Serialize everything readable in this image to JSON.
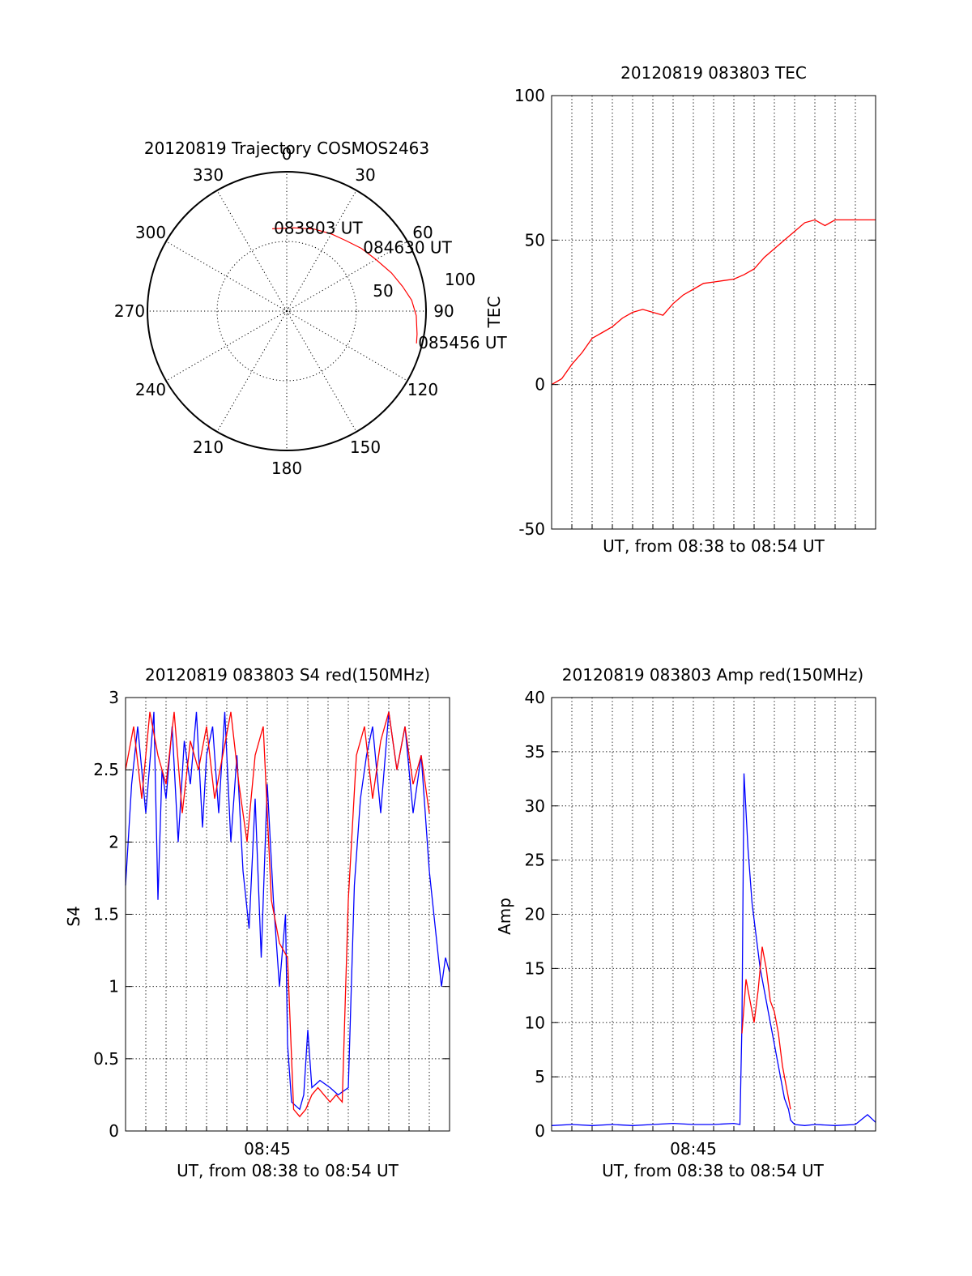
{
  "colors": {
    "red": "#ff0000",
    "blue": "#0000ff",
    "axis": "#000000"
  },
  "chart_data": [
    {
      "type": "polar",
      "title": "20120819 Trajectory COSMOS2463",
      "azimuth_labels": [
        "0",
        "30",
        "60",
        "90",
        "120",
        "150",
        "180",
        "210",
        "240",
        "270",
        "300",
        "330"
      ],
      "radial_labels": [
        "50",
        "100"
      ],
      "elevation_max": 100,
      "trajectory": {
        "color": "red",
        "points": [
          {
            "az": 350,
            "r": 60
          },
          {
            "az": 5,
            "r": 60
          },
          {
            "az": 18,
            "r": 62
          },
          {
            "az": 30,
            "r": 64
          },
          {
            "az": 40,
            "r": 66
          },
          {
            "az": 50,
            "r": 70
          },
          {
            "az": 60,
            "r": 74
          },
          {
            "az": 70,
            "r": 80
          },
          {
            "az": 78,
            "r": 85
          },
          {
            "az": 85,
            "r": 90
          },
          {
            "az": 92,
            "r": 93
          },
          {
            "az": 100,
            "r": 95
          },
          {
            "az": 104,
            "r": 96
          }
        ],
        "labels": [
          {
            "text": "083803 UT",
            "az": 350,
            "r": 60
          },
          {
            "text": "084630 UT",
            "az": 50,
            "r": 70
          },
          {
            "text": "085456 UT",
            "az": 104,
            "r": 96
          }
        ]
      }
    },
    {
      "type": "line",
      "title": "20120819 083803 TEC",
      "xlabel": "UT, from 08:38 to 08:54 UT",
      "ylabel": "TEC",
      "ylim": [
        -50,
        100
      ],
      "yticks": [
        "-50",
        "0",
        "50",
        "100"
      ],
      "grid": true,
      "series": [
        {
          "color": "red",
          "x": [
            0,
            0.5,
            1,
            1.5,
            2,
            2.5,
            3,
            3.5,
            4,
            4.5,
            5,
            5.5,
            6,
            6.5,
            7,
            7.5,
            8,
            8.5,
            9,
            9.5,
            10,
            10.5,
            11,
            11.5,
            12,
            12.5,
            13,
            13.5,
            14,
            14.5,
            15,
            15.5,
            16
          ],
          "y": [
            0,
            2,
            7,
            11,
            16,
            18,
            20,
            23,
            25,
            26,
            25,
            24,
            28,
            31,
            33,
            35,
            35.5,
            36,
            36.5,
            38,
            40,
            44,
            47,
            50,
            53,
            56,
            57,
            55,
            57,
            57,
            57,
            57,
            57
          ]
        }
      ]
    },
    {
      "type": "line",
      "title": "20120819 083803 S4 red(150MHz)",
      "xlabel": "UT, from 08:38 to 08:54 UT",
      "ylabel": "S4",
      "xtick_label": "08:45",
      "ylim": [
        0,
        3
      ],
      "yticks": [
        "0",
        "0.5",
        "1",
        "1.5",
        "2",
        "2.5",
        "3"
      ],
      "grid": true,
      "series": [
        {
          "color": "blue",
          "x": [
            0,
            0.3,
            0.6,
            1.0,
            1.4,
            1.6,
            1.8,
            2.0,
            2.3,
            2.6,
            2.9,
            3.2,
            3.5,
            3.8,
            4.0,
            4.3,
            4.6,
            4.9,
            5.2,
            5.5,
            5.8,
            6.1,
            6.4,
            6.7,
            7.0,
            7.3,
            7.6,
            7.9,
            8.0,
            8.2,
            8.6,
            8.8,
            9.0,
            9.2,
            9.6,
            10.1,
            10.5,
            11.0,
            11.3,
            11.6,
            11.9,
            12.2,
            12.6,
            13.0,
            13.4,
            13.8,
            14.2,
            14.6,
            15.0,
            15.3,
            15.6,
            15.8,
            16.0
          ],
          "y": [
            1.7,
            2.4,
            2.8,
            2.2,
            2.9,
            1.6,
            2.5,
            2.3,
            2.8,
            2.0,
            2.7,
            2.4,
            2.9,
            2.1,
            2.6,
            2.8,
            2.2,
            2.9,
            2.0,
            2.6,
            1.8,
            1.4,
            2.3,
            1.2,
            2.4,
            1.6,
            1.0,
            1.5,
            0.6,
            0.2,
            0.15,
            0.25,
            0.7,
            0.3,
            0.35,
            0.3,
            0.25,
            0.3,
            1.7,
            2.3,
            2.6,
            2.8,
            2.2,
            2.9,
            2.5,
            2.8,
            2.2,
            2.6,
            1.8,
            1.4,
            1.0,
            1.2,
            1.1
          ]
        },
        {
          "color": "red",
          "x": [
            0,
            0.4,
            0.8,
            1.2,
            1.6,
            2.0,
            2.4,
            2.8,
            3.2,
            3.6,
            4.0,
            4.4,
            4.8,
            5.2,
            5.6,
            6.0,
            6.4,
            6.8,
            7.2,
            7.6,
            8.0,
            8.3,
            8.6,
            8.9,
            9.2,
            9.5,
            9.8,
            10.1,
            10.4,
            10.7,
            11.0,
            11.4,
            11.8,
            12.2,
            12.6,
            13.0,
            13.4,
            13.8,
            14.2,
            14.6,
            15.0
          ],
          "y": [
            2.5,
            2.8,
            2.3,
            2.9,
            2.6,
            2.4,
            2.9,
            2.2,
            2.7,
            2.5,
            2.8,
            2.3,
            2.6,
            2.9,
            2.4,
            2.0,
            2.6,
            2.8,
            1.6,
            1.3,
            1.2,
            0.15,
            0.1,
            0.15,
            0.25,
            0.3,
            0.25,
            0.2,
            0.25,
            0.2,
            1.6,
            2.6,
            2.8,
            2.3,
            2.7,
            2.9,
            2.5,
            2.8,
            2.4,
            2.6,
            2.2
          ]
        }
      ]
    },
    {
      "type": "line",
      "title": "20120819 083803 Amp red(150MHz)",
      "xlabel": "UT, from 08:38 to 08:54 UT",
      "ylabel": "Amp",
      "xtick_label": "08:45",
      "ylim": [
        0,
        40
      ],
      "yticks": [
        "0",
        "5",
        "10",
        "15",
        "20",
        "25",
        "30",
        "35",
        "40"
      ],
      "grid": true,
      "series": [
        {
          "color": "blue",
          "x": [
            0,
            1,
            2,
            3,
            4,
            5,
            6,
            7,
            8,
            9,
            9.3,
            9.4,
            9.5,
            9.7,
            9.9,
            10.1,
            10.3,
            10.5,
            10.7,
            10.9,
            11.1,
            11.3,
            11.5,
            11.7,
            11.8,
            12.0,
            12.5,
            13,
            14,
            15,
            15.6,
            16
          ],
          "y": [
            0.5,
            0.6,
            0.5,
            0.6,
            0.5,
            0.6,
            0.7,
            0.6,
            0.6,
            0.7,
            0.6,
            10,
            33,
            26,
            21,
            18,
            15,
            13,
            11,
            9,
            7,
            5,
            3,
            2,
            1,
            0.6,
            0.5,
            0.6,
            0.5,
            0.6,
            1.5,
            0.8
          ]
        },
        {
          "color": "red",
          "x": [
            9.4,
            9.6,
            9.8,
            10.0,
            10.2,
            10.4,
            10.6,
            10.8,
            11.0,
            11.2,
            11.4,
            11.6,
            11.8
          ],
          "y": [
            9,
            14,
            12,
            10,
            13,
            17,
            15,
            12,
            11,
            9,
            6,
            4,
            2
          ]
        }
      ]
    }
  ]
}
